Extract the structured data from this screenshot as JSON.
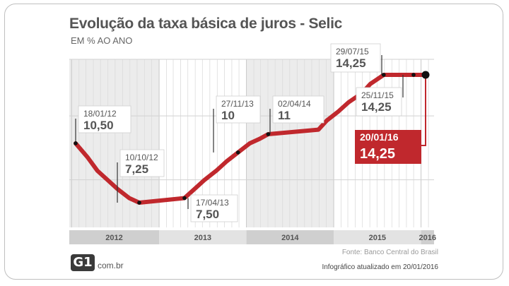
{
  "header": {
    "title": "Evolução da taxa básica de juros - Selic",
    "subtitle": "EM % AO ANO"
  },
  "chart_data": {
    "type": "line",
    "title": "Evolução da taxa básica de juros - Selic",
    "subtitle": "EM % AO ANO",
    "xlabel": "",
    "ylabel": "",
    "x_range": [
      "2012-01",
      "2016-01"
    ],
    "ylim": [
      6,
      16
    ],
    "grid": true,
    "line_color": "#c0282d",
    "series": [
      {
        "values": [
          {
            "date": "2012-01-18",
            "value": 10.5
          },
          {
            "date": "2012-03-07",
            "value": 9.75
          },
          {
            "date": "2012-04-18",
            "value": 9.0
          },
          {
            "date": "2012-05-30",
            "value": 8.5
          },
          {
            "date": "2012-07-11",
            "value": 8.0
          },
          {
            "date": "2012-08-29",
            "value": 7.5
          },
          {
            "date": "2012-10-10",
            "value": 7.25
          },
          {
            "date": "2013-04-17",
            "value": 7.5
          },
          {
            "date": "2013-05-29",
            "value": 8.0
          },
          {
            "date": "2013-07-10",
            "value": 8.5
          },
          {
            "date": "2013-08-28",
            "value": 9.0
          },
          {
            "date": "2013-10-09",
            "value": 9.5
          },
          {
            "date": "2013-11-27",
            "value": 10.0
          },
          {
            "date": "2014-01-15",
            "value": 10.5
          },
          {
            "date": "2014-02-26",
            "value": 10.75
          },
          {
            "date": "2014-04-02",
            "value": 11.0
          },
          {
            "date": "2014-10-29",
            "value": 11.25
          },
          {
            "date": "2014-12-03",
            "value": 11.75
          },
          {
            "date": "2015-01-21",
            "value": 12.25
          },
          {
            "date": "2015-03-04",
            "value": 12.75
          },
          {
            "date": "2015-04-29",
            "value": 13.25
          },
          {
            "date": "2015-06-03",
            "value": 13.75
          },
          {
            "date": "2015-07-29",
            "value": 14.25
          },
          {
            "date": "2016-01-20",
            "value": 14.25
          }
        ]
      }
    ],
    "year_labels": [
      "2012",
      "2013",
      "2014",
      "2015",
      "2016"
    ],
    "annotations": [
      {
        "date_label": "18/01/12",
        "value_label": "10,50"
      },
      {
        "date_label": "10/10/12",
        "value_label": "7,25"
      },
      {
        "date_label": "17/04/13",
        "value_label": "7,50"
      },
      {
        "date_label": "27/11/13",
        "value_label": "10"
      },
      {
        "date_label": "02/04/14",
        "value_label": "11"
      },
      {
        "date_label": "29/07/15",
        "value_label": "14,25"
      },
      {
        "date_label": "25/11/15",
        "value_label": "14,25"
      },
      {
        "date_label": "20/01/16",
        "value_label": "14,25",
        "highlight": true
      }
    ]
  },
  "footer": {
    "source": "Fonte: Banco Central do Brasil",
    "updated": "Infográfico atualizado em 20/01/2016",
    "logo_text": "G1",
    "logo_domain": "com.br"
  }
}
